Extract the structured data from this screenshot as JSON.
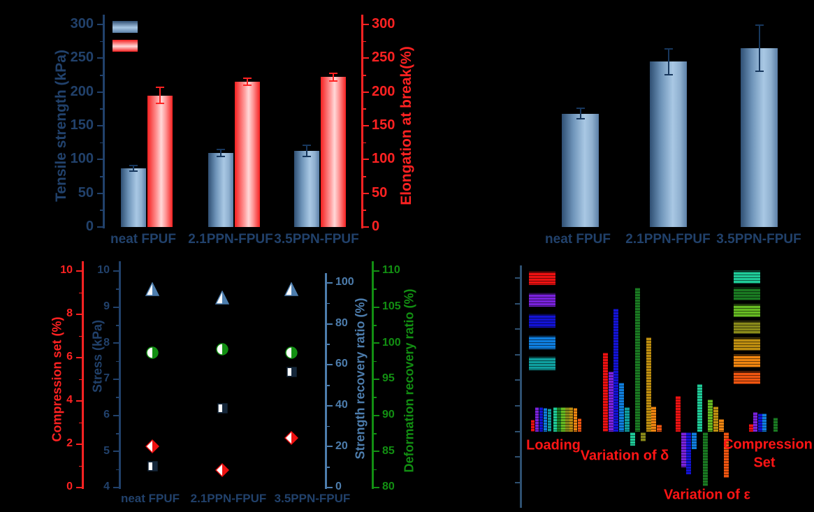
{
  "colors": {
    "navy_text": "#21416b",
    "error_navy": "#17375d",
    "red_axis": "#ff2222",
    "steel_blue": "#4d7dad",
    "green_axis": "#128f12",
    "square_navy": "#15273a",
    "diamond_red": "#ee1111",
    "br_axis": "#2e5070",
    "br_label_red": "#ff1515",
    "blue_bar_gradient": [
      "#2f4f73",
      "#a9c8e4",
      "#5c80a8"
    ],
    "red_bar_gradient": [
      "#f52020",
      "#ffd8d8",
      "#f52020"
    ]
  },
  "chart_data": [
    {
      "id": "tensile-elongation",
      "type": "bar",
      "categories": [
        "neat FPUF",
        "2.1PPN-FPUF",
        "3.5PPN-FPUF"
      ],
      "left_axis": {
        "label": "Tensile strength (kPa)",
        "ticks": [
          0,
          50,
          100,
          150,
          200,
          250,
          300
        ],
        "range": [
          0,
          300
        ],
        "color": "#21416b"
      },
      "right_axis": {
        "label": "Elongation at break(%)",
        "ticks": [
          0,
          50,
          100,
          150,
          200,
          250,
          300
        ],
        "range": [
          0,
          300
        ],
        "color": "#ff2222"
      },
      "series": [
        {
          "name": "tensile-strength",
          "axis": "left",
          "swatch": "blue",
          "values": [
            87,
            110,
            113
          ],
          "errors": [
            4,
            5,
            8
          ]
        },
        {
          "name": "elongation-at-break",
          "axis": "right",
          "swatch": "red",
          "values": [
            195,
            215,
            222
          ],
          "errors": [
            12,
            5,
            6
          ]
        }
      ],
      "legend_swatches": [
        "blue",
        "red"
      ],
      "legend_position": "top-left-inside"
    },
    {
      "id": "unlabeled-blue-bars",
      "type": "bar",
      "categories": [
        "neat FPUF",
        "2.1PPN-FPUF",
        "3.5PPN-FPUF"
      ],
      "values": [
        168,
        245,
        265
      ],
      "errors": [
        8,
        19,
        34
      ],
      "ylim": [
        0,
        300
      ],
      "y_axis_visible": false
    },
    {
      "id": "recovery-scatter",
      "type": "scatter",
      "categories": [
        "neat FPUF",
        "2.1PPN-FPUF",
        "3.5PPN-FPUF"
      ],
      "axes": {
        "compression_set": {
          "label": "Compression set (%)",
          "ticks": [
            0,
            2,
            4,
            6,
            8,
            10
          ],
          "range": [
            0,
            10
          ],
          "color": "#ff2222",
          "side": "outer-left"
        },
        "stress": {
          "label": "Stress (kPa)",
          "ticks": [
            4,
            5,
            6,
            7,
            8,
            9,
            10
          ],
          "range": [
            4,
            10
          ],
          "color": "#21416b",
          "side": "inner-left"
        },
        "strength_recovery": {
          "label": "Strength recovery ratio (%)",
          "ticks": [
            0,
            20,
            40,
            60,
            80,
            100
          ],
          "range": [
            0,
            100
          ],
          "color": "#4d7dad",
          "side": "inner-right"
        },
        "deformation_recovery": {
          "label": "Deformation recovery ratio (%)",
          "ticks": [
            80,
            85,
            90,
            95,
            100,
            105,
            110
          ],
          "range": [
            80,
            110
          ],
          "color": "#128f12",
          "side": "outer-right"
        }
      },
      "series": [
        {
          "name": "strength-recovery-ratio",
          "marker": "half-triangle-up",
          "color": "#4d7dad",
          "axis": "strength_recovery",
          "values": [
            97,
            93,
            97
          ]
        },
        {
          "name": "deformation-recovery-ratio",
          "marker": "half-circle",
          "color": "#128f12",
          "axis": "deformation_recovery",
          "values": [
            98.7,
            99.2,
            98.7
          ]
        },
        {
          "name": "stress",
          "marker": "half-square",
          "color": "#15273a",
          "axis": "stress",
          "values": [
            4.6,
            6.2,
            7.2
          ]
        },
        {
          "name": "compression-set",
          "marker": "half-diamond",
          "color": "#ee1111",
          "axis": "compression_set",
          "values": [
            1.9,
            0.8,
            2.3
          ]
        }
      ]
    },
    {
      "id": "grouped-hatched-bars",
      "type": "bar",
      "y_axis_labels_visible": false,
      "value_units": "relative height (axis tick labels not visible)",
      "palette": {
        "red": "#ee1111",
        "purple": "#7a22dd",
        "blue": "#1313d6",
        "azure": "#0f7fe0",
        "teal": "#0fa0a0",
        "spring": "#1fcc99",
        "green": "#1a7a22",
        "yellowgreen": "#66bb22",
        "olive": "#8a8a1a",
        "darkyellow": "#bf8f10",
        "orange": "#f08510",
        "darkorange": "#f05510"
      },
      "legend": {
        "left_column": [
          "red",
          "purple",
          "blue",
          "azure",
          "teal"
        ],
        "right_column": [
          "spring",
          "green",
          "yellowgreen",
          "olive",
          "darkyellow",
          "orange",
          "darkorange"
        ]
      },
      "groups": [
        {
          "label_lines": [
            "Loading"
          ],
          "bars": [
            [
              "red",
              17
            ],
            [
              "purple",
              35
            ],
            [
              "blue",
              35
            ],
            [
              "azure",
              34
            ],
            [
              "teal",
              33
            ],
            [
              "spring",
              35
            ],
            [
              "green",
              35
            ],
            [
              "yellowgreen",
              35
            ],
            [
              "olive",
              35
            ],
            [
              "darkyellow",
              35
            ],
            [
              "orange",
              34
            ],
            [
              "darkorange",
              19
            ]
          ]
        },
        {
          "label_lines": [
            "Variation of δ"
          ],
          "bars": [
            [
              "red",
              113
            ],
            [
              "purple",
              86
            ],
            [
              "blue",
              176
            ],
            [
              "azure",
              70
            ],
            [
              "teal",
              35
            ],
            [
              "spring",
              -19
            ],
            [
              "green",
              206
            ],
            [
              "olive",
              -13
            ],
            [
              "darkyellow",
              135
            ],
            [
              "orange",
              36
            ],
            [
              "darkorange",
              10
            ]
          ]
        },
        {
          "label_lines": [
            "Variation of ε"
          ],
          "bars": [
            [
              "red",
              51
            ],
            [
              "purple",
              -50
            ],
            [
              "blue",
              -60
            ],
            [
              "azure",
              -24
            ],
            [
              "spring",
              68
            ],
            [
              "green",
              -77
            ],
            [
              "yellowgreen",
              46
            ],
            [
              "darkyellow",
              36
            ],
            [
              "orange",
              18
            ],
            [
              "darkorange",
              -65
            ]
          ]
        },
        {
          "label_lines": [
            "Compression",
            "Set"
          ],
          "bars": [
            [
              "red",
              11
            ],
            [
              "purple",
              28
            ],
            [
              "blue",
              26
            ],
            [
              "azure",
              26
            ],
            [
              "green",
              20
            ]
          ]
        }
      ]
    }
  ]
}
